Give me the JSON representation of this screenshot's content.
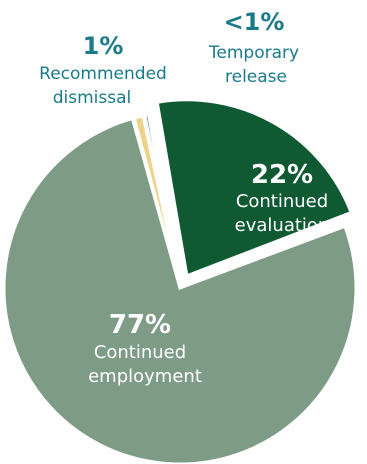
{
  "chart_data": {
    "type": "pie",
    "title": "",
    "slices": [
      {
        "pct_label": "22%",
        "label_lines": [
          "Continued",
          "evaluation"
        ],
        "value": 22,
        "color": "#0f5a32",
        "exploded": true,
        "label_color": "#ffffff"
      },
      {
        "pct_label": "77%",
        "label_lines": [
          "Continued",
          "employment"
        ],
        "value": 76.5,
        "color": "#7e9b86",
        "exploded": false,
        "label_color": "#ffffff"
      },
      {
        "pct_label": "1%",
        "label_lines": [
          "Recommended",
          "dismissal"
        ],
        "value": 1,
        "color": "#efd28a",
        "exploded": false,
        "label_color": "#1a7a8a"
      },
      {
        "pct_label": "<1%",
        "label_lines": [
          "Temporary",
          "release"
        ],
        "value": 0.5,
        "color": "#1a7a8a",
        "exploded": false,
        "label_color": "#1a7a8a"
      }
    ]
  }
}
